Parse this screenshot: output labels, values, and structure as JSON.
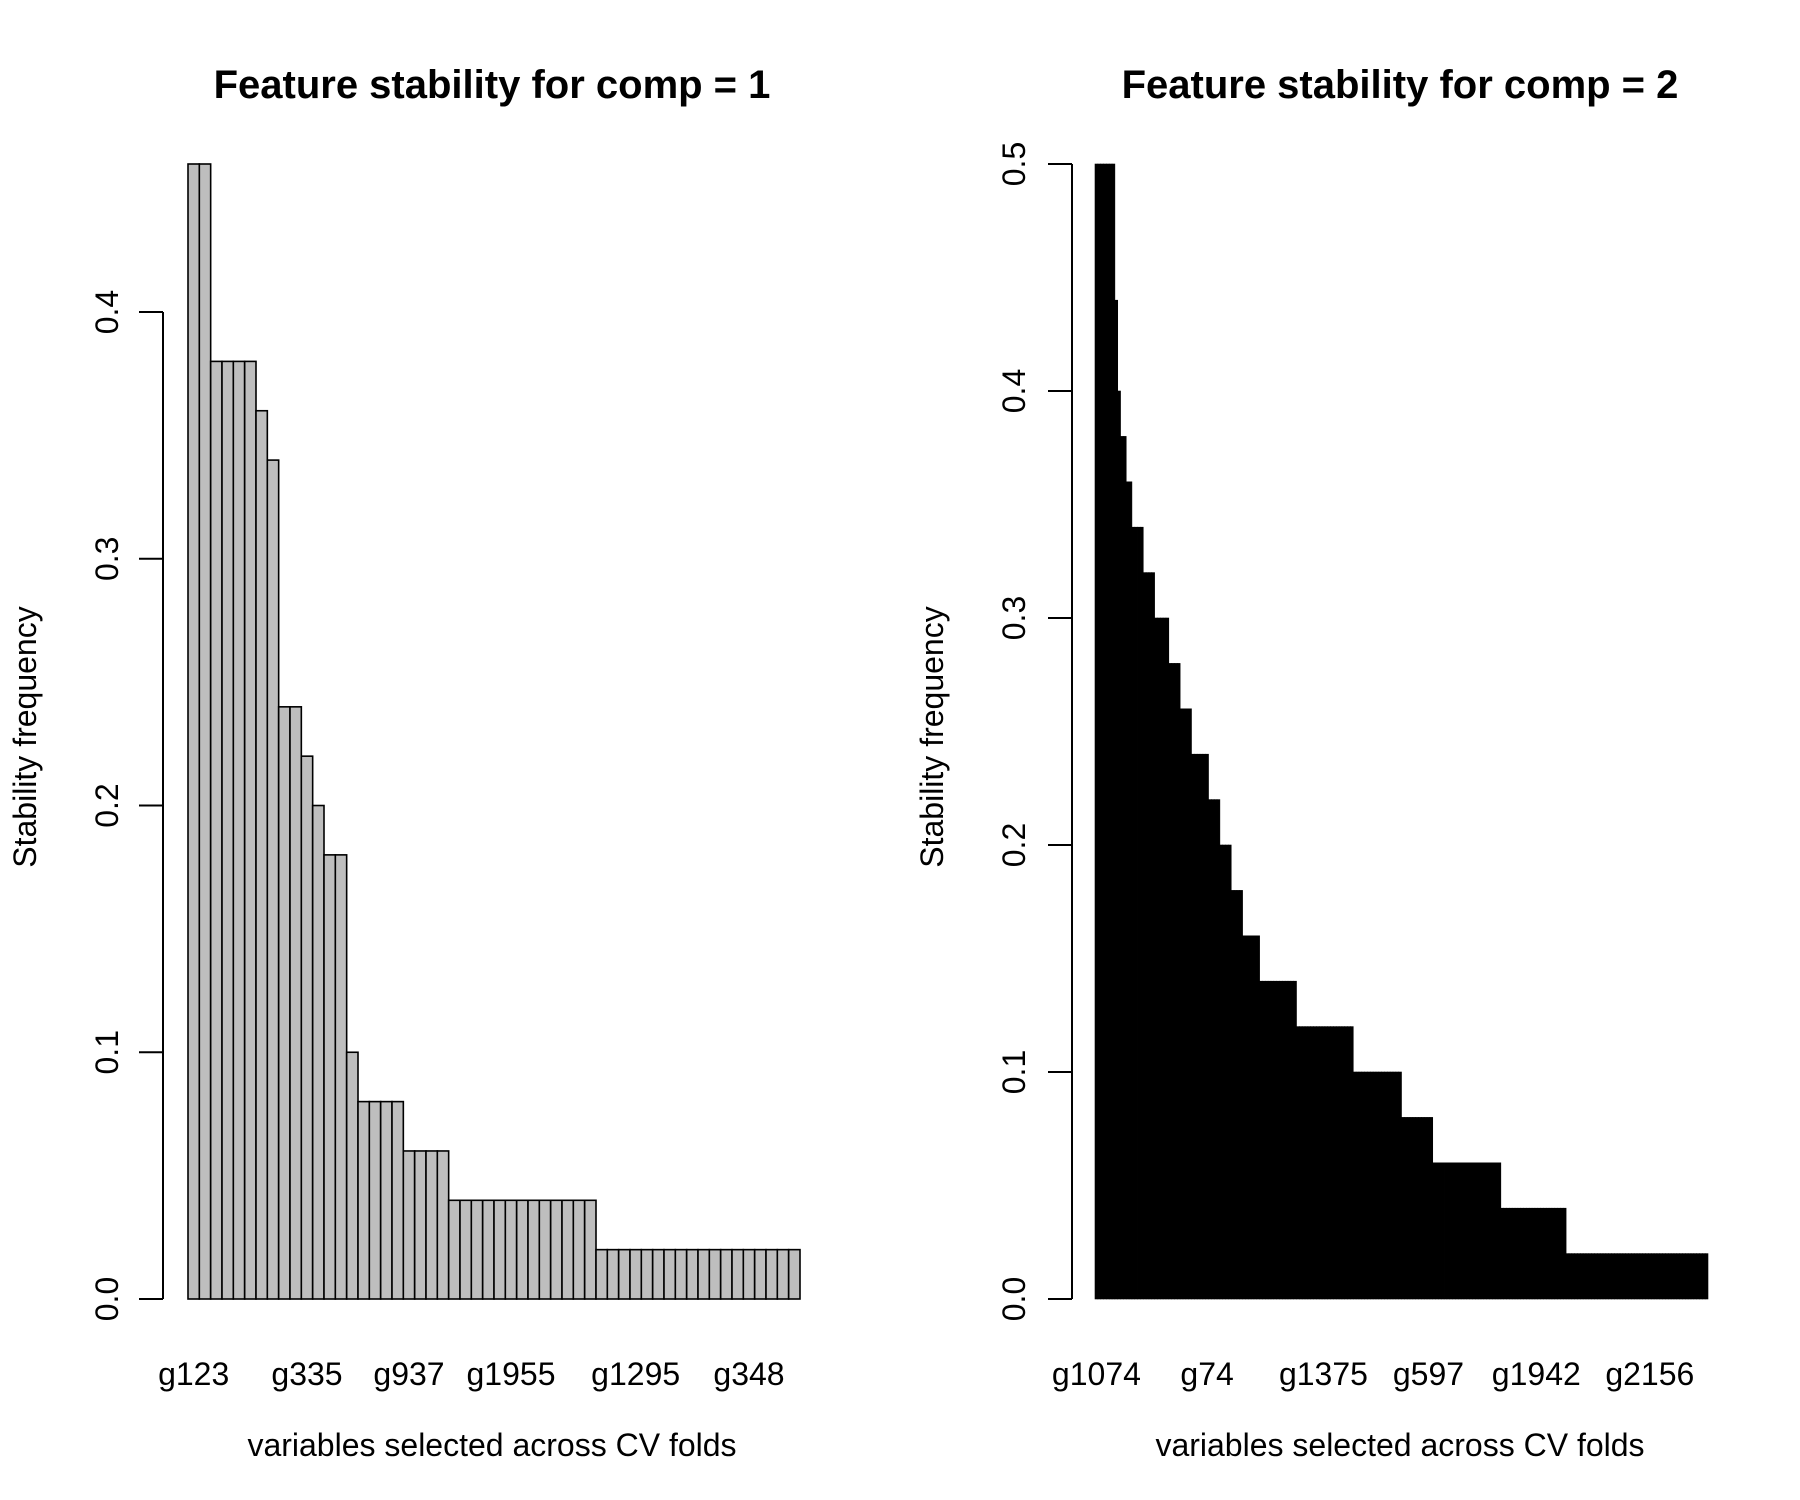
{
  "chart_data": [
    {
      "type": "bar",
      "title": "Feature stability for comp = 1",
      "xlabel": "variables selected across CV folds",
      "ylabel": "Stability frequency",
      "ylim": [
        0,
        0.46
      ],
      "yticks": [
        0.0,
        0.1,
        0.2,
        0.3,
        0.4
      ],
      "ytick_labels": [
        "0.0",
        "0.1",
        "0.2",
        "0.3",
        "0.4"
      ],
      "xtick_labels": [
        {
          "index": 0,
          "label": "g123"
        },
        {
          "index": 10,
          "label": "g335"
        },
        {
          "index": 19,
          "label": "g937"
        },
        {
          "index": 28,
          "label": "g1955"
        },
        {
          "index": 39,
          "label": "g1295"
        },
        {
          "index": 49,
          "label": "g348"
        }
      ],
      "bar_fill": "#bebebe",
      "bar_stroke": "#000000",
      "values": [
        0.46,
        0.46,
        0.38,
        0.38,
        0.38,
        0.38,
        0.36,
        0.34,
        0.24,
        0.24,
        0.22,
        0.2,
        0.18,
        0.18,
        0.1,
        0.08,
        0.08,
        0.08,
        0.08,
        0.06,
        0.06,
        0.06,
        0.06,
        0.04,
        0.04,
        0.04,
        0.04,
        0.04,
        0.04,
        0.04,
        0.04,
        0.04,
        0.04,
        0.04,
        0.04,
        0.04,
        0.02,
        0.02,
        0.02,
        0.02,
        0.02,
        0.02,
        0.02,
        0.02,
        0.02,
        0.02,
        0.02,
        0.02,
        0.02,
        0.02,
        0.02,
        0.02,
        0.02,
        0.02
      ]
    },
    {
      "type": "bar",
      "title": "Feature stability for comp = 2",
      "xlabel": "variables selected across CV folds",
      "ylabel": "Stability frequency",
      "ylim": [
        0,
        0.5
      ],
      "yticks": [
        0.0,
        0.1,
        0.2,
        0.3,
        0.4,
        0.5
      ],
      "ytick_labels": [
        "0.0",
        "0.1",
        "0.2",
        "0.3",
        "0.4",
        "0.5"
      ],
      "xtick_labels": [
        {
          "index": 0,
          "label": "g1074"
        },
        {
          "index": 39,
          "label": "g74"
        },
        {
          "index": 80,
          "label": "g1375"
        },
        {
          "index": 117,
          "label": "g597"
        },
        {
          "index": 155,
          "label": "g1942"
        },
        {
          "index": 195,
          "label": "g2156"
        }
      ],
      "bar_fill": "#000000",
      "bar_stroke": "#000000",
      "series_runs": [
        {
          "value": 0.5,
          "count": 7
        },
        {
          "value": 0.44,
          "count": 1
        },
        {
          "value": 0.4,
          "count": 1
        },
        {
          "value": 0.38,
          "count": 2
        },
        {
          "value": 0.36,
          "count": 2
        },
        {
          "value": 0.34,
          "count": 4
        },
        {
          "value": 0.32,
          "count": 4
        },
        {
          "value": 0.3,
          "count": 5
        },
        {
          "value": 0.28,
          "count": 4
        },
        {
          "value": 0.26,
          "count": 4
        },
        {
          "value": 0.24,
          "count": 6
        },
        {
          "value": 0.22,
          "count": 4
        },
        {
          "value": 0.2,
          "count": 4
        },
        {
          "value": 0.18,
          "count": 4
        },
        {
          "value": 0.16,
          "count": 6
        },
        {
          "value": 0.14,
          "count": 13
        },
        {
          "value": 0.12,
          "count": 20
        },
        {
          "value": 0.1,
          "count": 17
        },
        {
          "value": 0.08,
          "count": 11
        },
        {
          "value": 0.06,
          "count": 24
        },
        {
          "value": 0.04,
          "count": 23
        },
        {
          "value": 0.02,
          "count": 50
        }
      ]
    }
  ]
}
